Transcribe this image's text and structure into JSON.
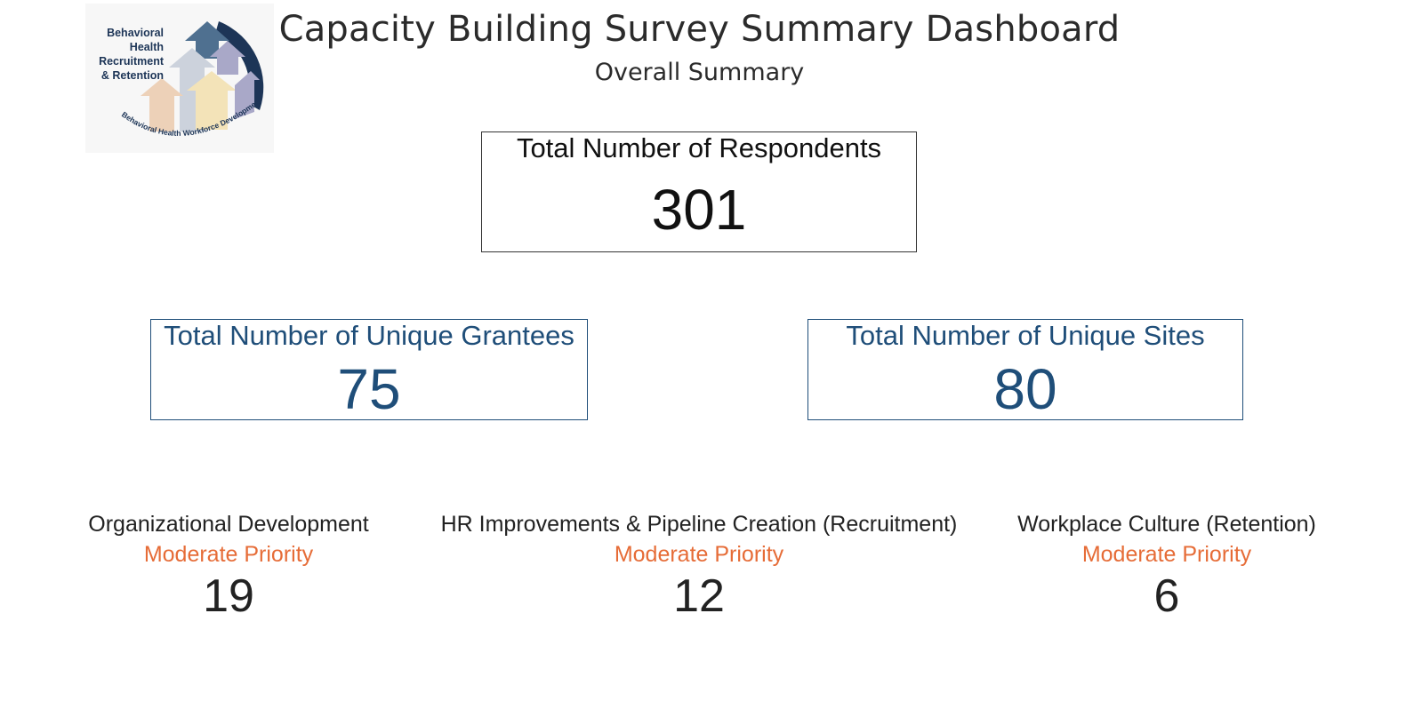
{
  "logo": {
    "lines": [
      "Behavioral",
      "Health",
      "Recruitment",
      "& Retention"
    ],
    "arc_text": "Behavioral Health Workforce Development",
    "colors": {
      "dark_navy": "#1d3557",
      "steel_blue": "#4f7090",
      "lavender": "#a9a8c8",
      "light_gray": "#ccd2dc",
      "peach": "#edd1b8",
      "cream": "#f3e3b8"
    }
  },
  "header": {
    "title": "Capacity Building Survey Summary Dashboard",
    "subtitle": "Overall Summary"
  },
  "kpis": {
    "respondents": {
      "label": "Total Number of Respondents",
      "value": "301"
    },
    "grantees": {
      "label": "Total Number of Unique Grantees",
      "value": "75"
    },
    "sites": {
      "label": "Total Number of Unique Sites",
      "value": "80"
    }
  },
  "priorities": [
    {
      "label": "Organizational Development",
      "priority": "Moderate Priority",
      "value": "19"
    },
    {
      "label": "HR Improvements & Pipeline Creation (Recruitment)",
      "priority": "Moderate Priority",
      "value": "12"
    },
    {
      "label": "Workplace Culture (Retention)",
      "priority": "Moderate Priority",
      "value": "6"
    }
  ],
  "colors": {
    "kpi_blue": "#1f4e79",
    "priority_orange": "#e66c37",
    "text_dark": "#222222"
  }
}
